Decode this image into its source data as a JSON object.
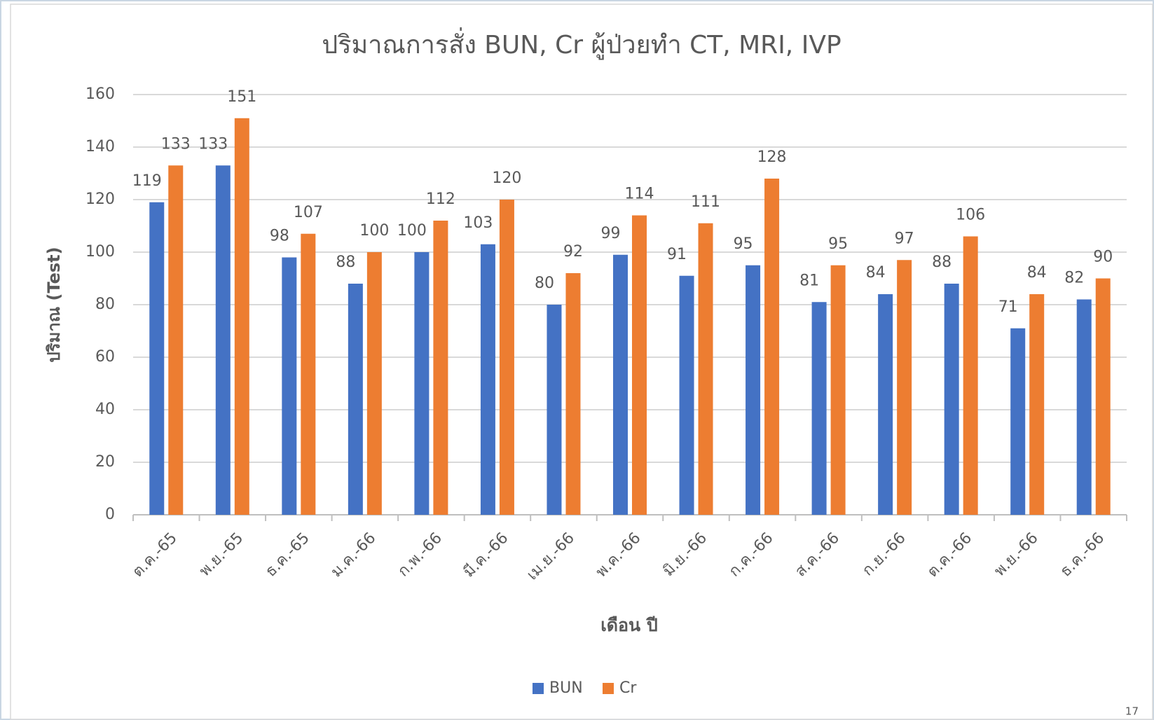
{
  "chart_data": {
    "type": "bar",
    "title": "ปริมาณการสั่ง  BUN, Cr ผู้ป่วยทำ CT, MRI, IVP",
    "x_label": "เดือน ปี",
    "y_label": "ปริมาณ (Test)",
    "categories": [
      "ต.ค.-65",
      "พ.ย.-65",
      "ธ.ค.-65",
      "ม.ค.-66",
      "ก.พ.-66",
      "มี.ค.-66",
      "เม.ย.-66",
      "พ.ค.-66",
      "มิ.ย.-66",
      "ก.ค.-66",
      "ส.ค.-66",
      "ก.ย.-66",
      "ต.ค.-66",
      "พ.ย.-66",
      "ธ.ค.-66"
    ],
    "series": [
      {
        "name": "BUN",
        "color": "#4472c4",
        "values": [
          119,
          133,
          98,
          88,
          100,
          103,
          80,
          99,
          91,
          95,
          81,
          84,
          88,
          71,
          82
        ]
      },
      {
        "name": "Cr",
        "color": "#ed7d31",
        "values": [
          133,
          151,
          107,
          100,
          112,
          120,
          92,
          114,
          111,
          128,
          95,
          97,
          106,
          84,
          90
        ]
      }
    ],
    "ylim": [
      0,
      160
    ],
    "yticks": [
      0,
      20,
      40,
      60,
      80,
      100,
      120,
      140,
      160
    ],
    "grid": true,
    "legend": "bottom"
  },
  "page_number": "17"
}
